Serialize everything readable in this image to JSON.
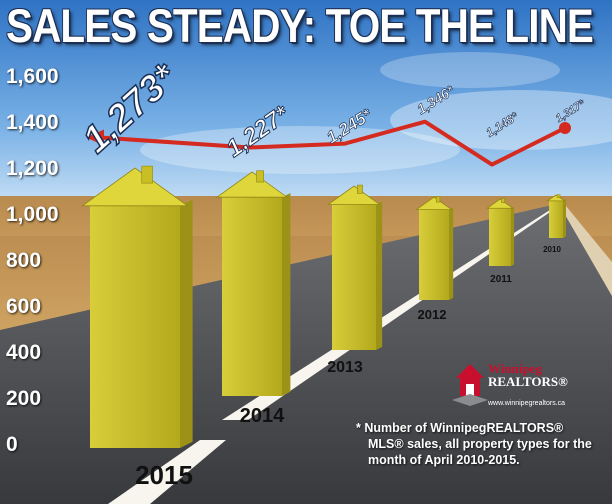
{
  "title": "SALES STEADY: TOE THE LINE",
  "footnote": {
    "line1": "* Number of WinnipegREALTORS®",
    "line2": "MLS® sales, all property types for the",
    "line3": "month of April 2010-2015."
  },
  "logo": {
    "name_line1": "Winnipeg",
    "name_line2": "REALTORS®",
    "url": "www.winnipegrealtors.ca"
  },
  "colors": {
    "house_front": "#c9be24",
    "house_side": "#9c9217",
    "house_roof": "#ded63a",
    "trend_line": "#d42a1f",
    "title_text": "#ffffff",
    "title_outline": "#1b2f55"
  },
  "chart_data": {
    "type": "bar",
    "categories": [
      "2015",
      "2014",
      "2013",
      "2012",
      "2011",
      "2010"
    ],
    "values": [
      1273,
      1227,
      1245,
      1346,
      1148,
      1317
    ],
    "value_labels": [
      "1,273*",
      "1,227*",
      "1,245*",
      "1,346*",
      "1,148*",
      "1,317*"
    ],
    "y_ticks": [
      "0",
      "200",
      "400",
      "600",
      "800",
      "1,000",
      "1,200",
      "1,400",
      "1,600"
    ],
    "y_tick_values": [
      0,
      200,
      400,
      600,
      800,
      1000,
      1200,
      1400,
      1600
    ],
    "ylim": [
      0,
      1600
    ],
    "bar_style": "house",
    "overlay": "trend line with arrow pointing left",
    "grid": false,
    "legend": "none"
  }
}
